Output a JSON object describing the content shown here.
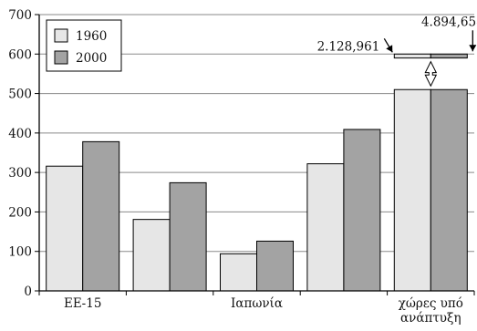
{
  "chart_data": {
    "type": "bar",
    "categories": [
      "ΕΕ-15",
      "",
      "Ιαπωνία",
      "",
      "χώρες υπό ανάπτυξη"
    ],
    "category_label_lines": [
      [
        "ΕΕ-15"
      ],
      [
        ""
      ],
      [
        "Ιαπωνία"
      ],
      [
        ""
      ],
      [
        "χώρες υπό",
        "ανάπτυξη"
      ]
    ],
    "series": [
      {
        "name": "1960",
        "values": [
          316,
          181,
          94,
          322,
          2128961
        ]
      },
      {
        "name": "2000",
        "values": [
          378,
          274,
          126,
          409,
          4894658
        ]
      }
    ],
    "ylim": [
      0,
      700
    ],
    "yticks": [
      "0",
      "100",
      "200",
      "300",
      "400",
      "500",
      "600",
      "700"
    ],
    "ytick_values": [
      0,
      100,
      200,
      300,
      400,
      500,
      600,
      700
    ],
    "grid": true,
    "legend": "top-left",
    "axis_break": {
      "category_index": 4,
      "from": 510,
      "to": 590
    },
    "annotations": [
      {
        "text": "2.128,961",
        "series": 0,
        "category_index": 4
      },
      {
        "text": "4.894,658",
        "series": 1,
        "category_index": 4
      }
    ],
    "colors": {
      "1960": "#e6e6e6",
      "2000": "#a3a3a3",
      "grid": "#8a8a8a",
      "axis": "#000000"
    }
  }
}
